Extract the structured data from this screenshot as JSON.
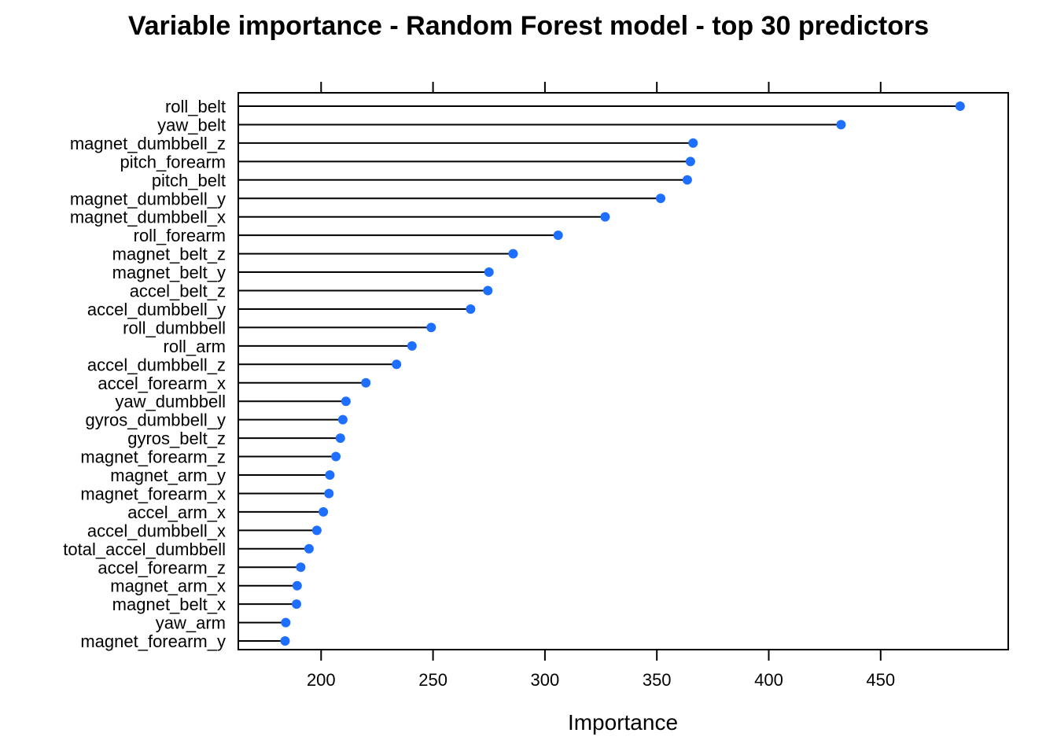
{
  "chart_data": {
    "type": "dotplot",
    "title": "Variable importance - Random Forest model - top 30 predictors",
    "xlabel": "Importance",
    "ylabel": "",
    "xlim": [
      163,
      507
    ],
    "xticks": [
      200,
      250,
      300,
      350,
      400,
      450
    ],
    "xtick_labels": [
      "200",
      "250",
      "300",
      "350",
      "400",
      "450"
    ],
    "categories": [
      "roll_belt",
      "yaw_belt",
      "magnet_dumbbell_z",
      "pitch_forearm",
      "pitch_belt",
      "magnet_dumbbell_y",
      "magnet_dumbbell_x",
      "roll_forearm",
      "magnet_belt_z",
      "magnet_belt_y",
      "accel_belt_z",
      "accel_dumbbell_y",
      "roll_dumbbell",
      "roll_arm",
      "accel_dumbbell_z",
      "accel_forearm_x",
      "yaw_dumbbell",
      "gyros_dumbbell_y",
      "gyros_belt_z",
      "magnet_forearm_z",
      "magnet_arm_y",
      "magnet_forearm_x",
      "accel_arm_x",
      "accel_dumbbell_x",
      "total_accel_dumbbell",
      "accel_forearm_z",
      "magnet_arm_x",
      "magnet_belt_x",
      "yaw_arm",
      "magnet_forearm_y"
    ],
    "values": [
      485.5,
      432.3,
      366.2,
      365.0,
      363.6,
      351.7,
      326.9,
      305.9,
      285.8,
      275.0,
      274.5,
      266.8,
      249.2,
      240.6,
      233.7,
      220.0,
      211.1,
      209.7,
      208.6,
      206.6,
      203.9,
      203.5,
      201.0,
      198.1,
      194.6,
      190.9,
      189.3,
      189.0,
      184.2,
      183.9
    ],
    "grid": false,
    "colors": {
      "point": "#1e6eff",
      "line": "#000000"
    }
  }
}
